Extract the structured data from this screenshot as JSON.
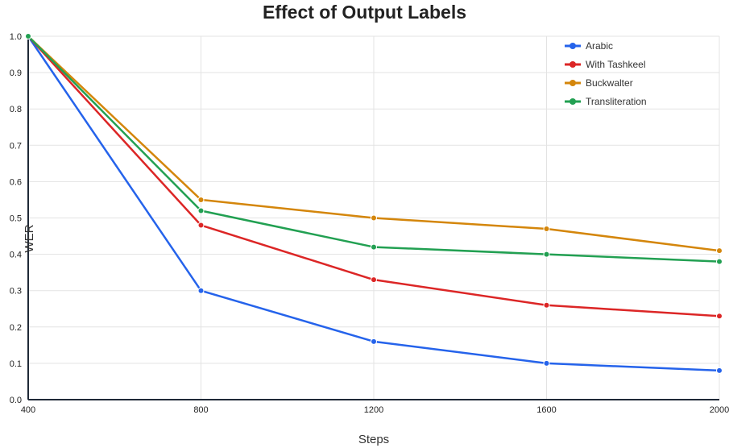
{
  "chart_data": {
    "type": "line",
    "title": "Effect of Output Labels",
    "xlabel": "Steps",
    "ylabel": "WER",
    "x": [
      400,
      800,
      1200,
      1600,
      2000
    ],
    "xlim": [
      400,
      2000
    ],
    "ylim": [
      0,
      1.0
    ],
    "yticks": [
      "0.0",
      "0.1",
      "0.2",
      "0.3",
      "0.4",
      "0.5",
      "0.6",
      "0.7",
      "0.8",
      "0.9",
      "1.0"
    ],
    "xticks": [
      "400",
      "800",
      "1200",
      "1600",
      "2000"
    ],
    "grid": true,
    "legend_position": "top-right",
    "series": [
      {
        "name": "Arabic",
        "color": "#2563eb",
        "values": [
          1.0,
          0.3,
          0.16,
          0.1,
          0.08
        ]
      },
      {
        "name": "With Tashkeel",
        "color": "#dc2626",
        "values": [
          1.0,
          0.48,
          0.33,
          0.26,
          0.23
        ]
      },
      {
        "name": "Buckwalter",
        "color": "#d4860b",
        "values": [
          1.0,
          0.55,
          0.5,
          0.47,
          0.41
        ]
      },
      {
        "name": "Transliteration",
        "color": "#22a052",
        "values": [
          1.0,
          0.52,
          0.42,
          0.4,
          0.38
        ]
      }
    ]
  }
}
